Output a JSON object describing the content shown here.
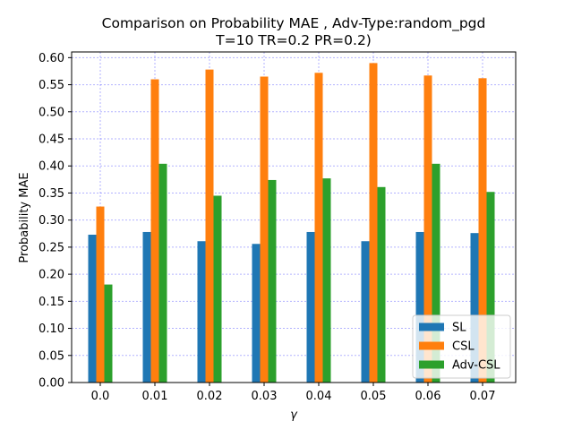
{
  "chart_data": {
    "type": "bar",
    "title": "Comparison on Probability MAE , Adv-Type:random_pgd",
    "subtitle": "T=10 TR=0.2 PR=0.2)",
    "xlabel": "γ",
    "ylabel": "Probability MAE",
    "categories": [
      "0.0",
      "0.01",
      "0.02",
      "0.03",
      "0.04",
      "0.05",
      "0.06",
      "0.07"
    ],
    "series": [
      {
        "name": "SL",
        "color": "#1f77b4",
        "values": [
          0.273,
          0.278,
          0.261,
          0.256,
          0.278,
          0.261,
          0.278,
          0.276
        ]
      },
      {
        "name": "CSL",
        "color": "#ff7f0e",
        "values": [
          0.325,
          0.56,
          0.578,
          0.565,
          0.572,
          0.59,
          0.567,
          0.562
        ]
      },
      {
        "name": "Adv-CSL",
        "color": "#2ca02c",
        "values": [
          0.181,
          0.404,
          0.345,
          0.374,
          0.377,
          0.361,
          0.404,
          0.352
        ]
      }
    ],
    "ylim": [
      0,
      0.6
    ],
    "yticks": [
      "0.00",
      "0.05",
      "0.10",
      "0.15",
      "0.20",
      "0.25",
      "0.30",
      "0.35",
      "0.40",
      "0.45",
      "0.50",
      "0.55",
      "0.60"
    ],
    "grid": true,
    "grid_color": "#0000ff",
    "legend_position": "bottom-right"
  }
}
